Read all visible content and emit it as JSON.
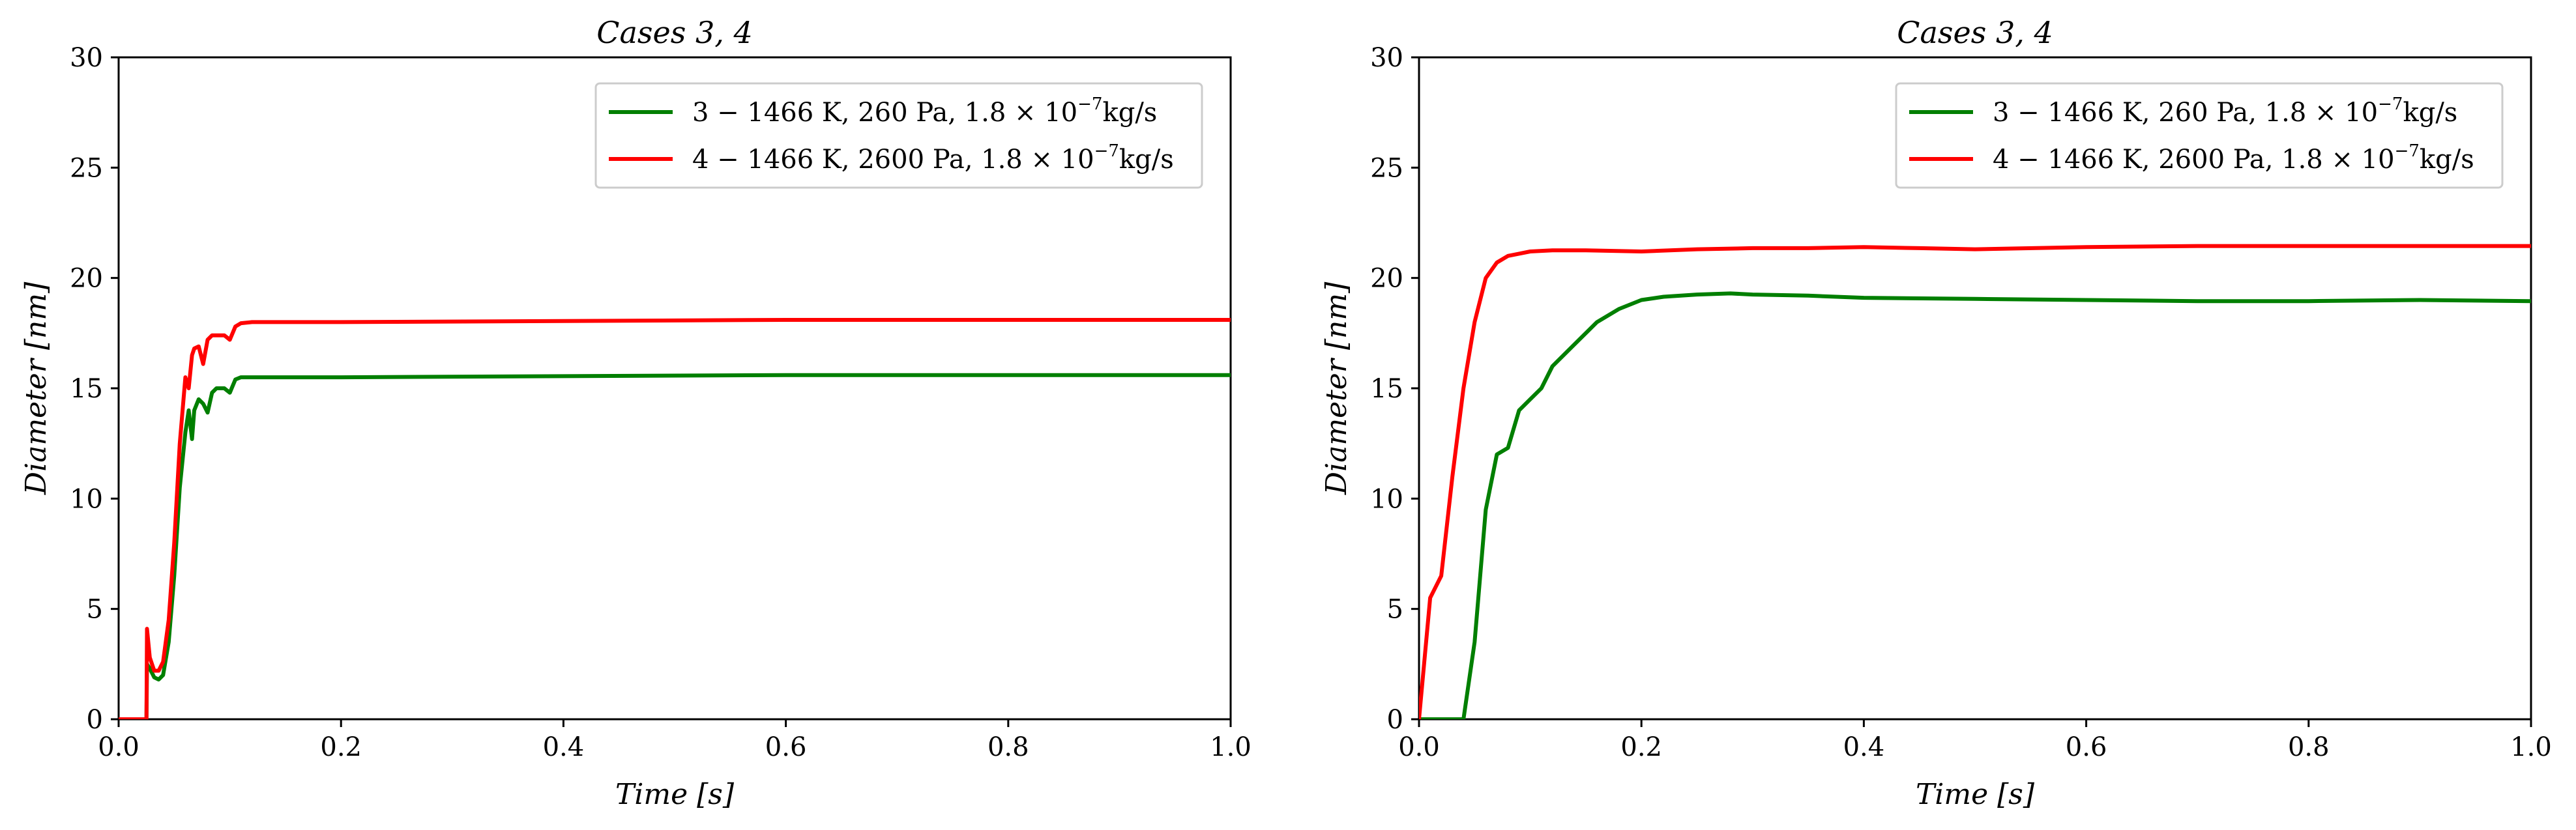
{
  "chart_data": [
    {
      "type": "line",
      "title": "Cases 3, 4",
      "xlabel": "Time [s]",
      "ylabel": "Diameter [nm]",
      "xlim": [
        0.0,
        1.0
      ],
      "ylim": [
        0,
        30
      ],
      "xticks": [
        0.0,
        0.2,
        0.4,
        0.6,
        0.8,
        1.0
      ],
      "yticks": [
        0,
        5,
        10,
        15,
        20,
        25,
        30
      ],
      "xtick_labels": [
        "0.0",
        "0.2",
        "0.4",
        "0.6",
        "0.8",
        "1.0"
      ],
      "ytick_labels": [
        "0",
        "5",
        "10",
        "15",
        "20",
        "25",
        "30"
      ],
      "grid": false,
      "legend_position": "top-right",
      "series": [
        {
          "name": "3 − 1466 K, 260 Pa, 1.8 × 10⁻⁷kg/s",
          "legend_main": "3 − 1466  K, 260  Pa,  1.8 × 10",
          "legend_exp": "−7",
          "legend_tail": "kg/s",
          "color": "#007f00",
          "x": [
            0.0,
            0.025,
            0.0255,
            0.028,
            0.032,
            0.036,
            0.04,
            0.045,
            0.05,
            0.055,
            0.06,
            0.063,
            0.066,
            0.068,
            0.072,
            0.076,
            0.08,
            0.084,
            0.088,
            0.095,
            0.1,
            0.105,
            0.11,
            0.12,
            0.2,
            0.4,
            0.6,
            0.8,
            1.0
          ],
          "y": [
            0,
            0,
            2.5,
            2.3,
            1.9,
            1.8,
            2.0,
            3.5,
            6.5,
            10.5,
            13.0,
            14.0,
            12.7,
            14.0,
            14.5,
            14.3,
            13.9,
            14.8,
            15.0,
            15.0,
            14.8,
            15.4,
            15.5,
            15.5,
            15.5,
            15.55,
            15.6,
            15.6,
            15.6
          ]
        },
        {
          "name": "4 − 1466 K, 2600 Pa, 1.8 × 10⁻⁷kg/s",
          "legend_main": "4 − 1466  K, 2600  Pa,  1.8 × 10",
          "legend_exp": "−7",
          "legend_tail": "kg/s",
          "color": "#ff0000",
          "x": [
            0.0,
            0.025,
            0.0255,
            0.028,
            0.032,
            0.036,
            0.04,
            0.045,
            0.05,
            0.055,
            0.06,
            0.063,
            0.066,
            0.068,
            0.072,
            0.076,
            0.08,
            0.084,
            0.088,
            0.095,
            0.1,
            0.105,
            0.11,
            0.12,
            0.2,
            0.4,
            0.6,
            0.8,
            1.0
          ],
          "y": [
            0,
            0,
            4.1,
            2.8,
            2.2,
            2.2,
            2.6,
            4.5,
            8.0,
            12.5,
            15.5,
            15.0,
            16.5,
            16.8,
            16.9,
            16.1,
            17.2,
            17.4,
            17.4,
            17.4,
            17.2,
            17.8,
            17.95,
            18.0,
            18.0,
            18.05,
            18.1,
            18.1,
            18.1
          ]
        }
      ]
    },
    {
      "type": "line",
      "title": "Cases 3, 4",
      "xlabel": "Time [s]",
      "ylabel": "Diameter [nm]",
      "xlim": [
        0.0,
        1.0
      ],
      "ylim": [
        0,
        30
      ],
      "xticks": [
        0.0,
        0.2,
        0.4,
        0.6,
        0.8,
        1.0
      ],
      "yticks": [
        0,
        5,
        10,
        15,
        20,
        25,
        30
      ],
      "xtick_labels": [
        "0.0",
        "0.2",
        "0.4",
        "0.6",
        "0.8",
        "1.0"
      ],
      "ytick_labels": [
        "0",
        "5",
        "10",
        "15",
        "20",
        "25",
        "30"
      ],
      "grid": false,
      "legend_position": "top-right",
      "series": [
        {
          "name": "3 − 1466 K, 260 Pa, 1.8 × 10⁻⁷kg/s",
          "legend_main": "3 − 1466  K, 260  Pa,  1.8 × 10",
          "legend_exp": "−7",
          "legend_tail": "kg/s",
          "color": "#007f00",
          "x": [
            0.0,
            0.04,
            0.05,
            0.06,
            0.07,
            0.08,
            0.09,
            0.1,
            0.11,
            0.12,
            0.14,
            0.16,
            0.18,
            0.2,
            0.22,
            0.25,
            0.28,
            0.3,
            0.35,
            0.4,
            0.5,
            0.6,
            0.7,
            0.8,
            0.9,
            1.0
          ],
          "y": [
            0,
            0,
            3.5,
            9.5,
            12.0,
            12.3,
            14.0,
            14.5,
            15.0,
            16.0,
            17.0,
            18.0,
            18.6,
            19.0,
            19.15,
            19.25,
            19.3,
            19.25,
            19.2,
            19.1,
            19.05,
            19.0,
            18.95,
            18.95,
            19.0,
            18.95
          ]
        },
        {
          "name": "4 − 1466 K, 2600 Pa, 1.8 × 10⁻⁷kg/s",
          "legend_main": "4 − 1466  K, 2600  Pa,  1.8 × 10",
          "legend_exp": "−7",
          "legend_tail": "kg/s",
          "color": "#ff0000",
          "x": [
            0.0,
            0.01,
            0.02,
            0.03,
            0.04,
            0.05,
            0.06,
            0.07,
            0.08,
            0.09,
            0.1,
            0.12,
            0.15,
            0.2,
            0.25,
            0.3,
            0.35,
            0.4,
            0.45,
            0.5,
            0.6,
            0.7,
            0.8,
            0.9,
            1.0
          ],
          "y": [
            0,
            5.5,
            6.5,
            11.0,
            15.0,
            18.0,
            20.0,
            20.7,
            21.0,
            21.1,
            21.2,
            21.25,
            21.25,
            21.2,
            21.3,
            21.35,
            21.35,
            21.4,
            21.35,
            21.3,
            21.4,
            21.45,
            21.45,
            21.45,
            21.45
          ]
        }
      ]
    }
  ]
}
